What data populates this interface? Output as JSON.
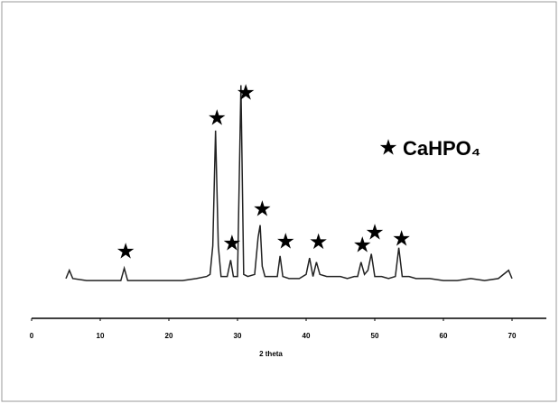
{
  "chart_data": {
    "type": "line",
    "x_label": "2 theta",
    "x": [
      5,
      5.5,
      6,
      8,
      10,
      12,
      13,
      13.5,
      14,
      16,
      18,
      20,
      22,
      24,
      25.5,
      26,
      26.4,
      26.8,
      27.2,
      27.6,
      28.5,
      29,
      29.4,
      30,
      30.5,
      30.9,
      31.5,
      32.5,
      33,
      33.3,
      33.6,
      34,
      35,
      35.8,
      36.2,
      36.6,
      37.5,
      39,
      40,
      40.5,
      41,
      41.5,
      42,
      43,
      44,
      45,
      46,
      47,
      47.5,
      48,
      48.5,
      49,
      49.5,
      50,
      51,
      52,
      53,
      53.5,
      54,
      55,
      56,
      58,
      60,
      62,
      64,
      66,
      68,
      69.5,
      70
    ],
    "values": [
      4,
      8,
      4,
      3,
      3,
      3,
      3,
      9,
      3,
      3,
      3,
      3,
      3,
      4,
      5,
      6,
      20,
      76,
      20,
      5,
      5,
      13,
      5,
      5,
      98,
      6,
      5,
      6,
      24,
      30,
      10,
      5,
      5,
      5,
      15,
      5,
      4,
      4,
      6,
      14,
      5,
      12,
      6,
      5,
      5,
      5,
      4,
      5,
      5,
      12,
      6,
      8,
      16,
      5,
      5,
      4,
      5,
      19,
      5,
      5,
      4,
      4,
      3,
      3,
      4,
      3,
      4,
      8,
      4
    ],
    "color": "#222222",
    "markers": {
      "name": "CaHPO₄",
      "color": "#000000",
      "x": [
        13.7,
        27.0,
        29.2,
        31.2,
        33.6,
        37.0,
        41.8,
        48.2,
        50.0,
        53.9
      ],
      "values": [
        16.7,
        81.6,
        20.6,
        93.9,
        37.3,
        21.5,
        21.1,
        19.7,
        25.9,
        22.8
      ]
    },
    "xlim": [
      0,
      75
    ],
    "xticks": [
      0,
      10,
      20,
      30,
      40,
      50,
      60,
      70
    ],
    "ylim": [
      0,
      100
    ]
  }
}
